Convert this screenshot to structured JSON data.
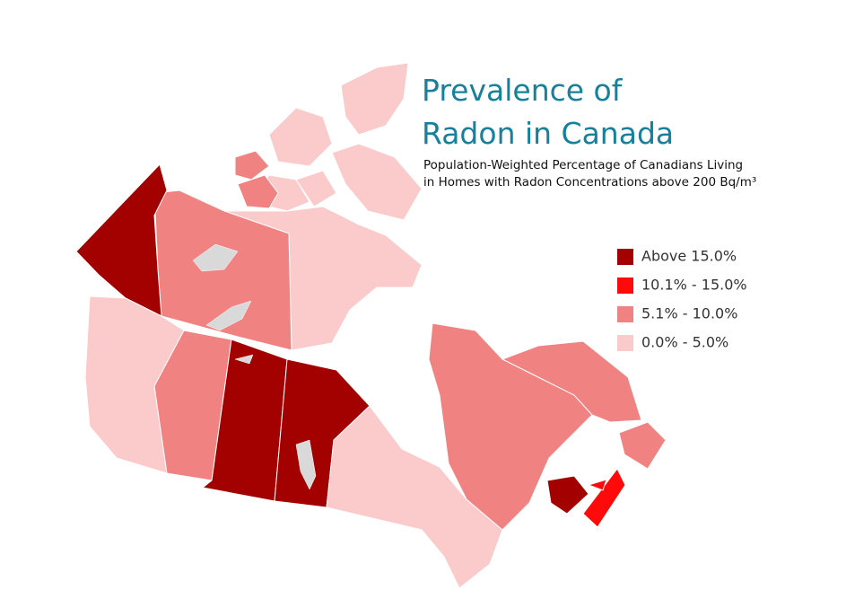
{
  "title": [
    "Prevalence of",
    "Radon in Canada"
  ],
  "subtitle": [
    "Population-Weighted Percentage of Canadians Living",
    "in Homes with Radon Concentrations above 200 Bq/m³"
  ],
  "legend": [
    {
      "label": "Above 15.0%",
      "color": "#a30000"
    },
    {
      "label": "10.1% - 15.0%",
      "color": "#ff0a0a"
    },
    {
      "label": "5.1% - 10.0%",
      "color": "#f08282"
    },
    {
      "label": "0.0% - 5.0%",
      "color": "#fbcaca"
    }
  ]
}
